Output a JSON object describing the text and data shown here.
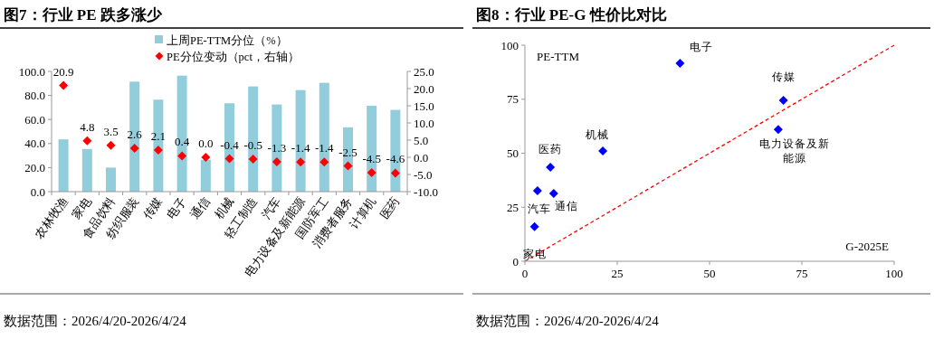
{
  "chart_data": [
    {
      "type": "bar",
      "title": "图7：行业 PE 跌多涨少",
      "categories": [
        "农林牧渔",
        "家电",
        "食品饮料",
        "纺织服装",
        "传媒",
        "电子",
        "通信",
        "机械",
        "轻工制造",
        "汽车",
        "电力设备及新能源",
        "国防军工",
        "消费者服务",
        "计算机",
        "医药"
      ],
      "series": [
        {
          "name": "上周PE-TTM分位（%）",
          "color": "#92cddc",
          "values": [
            43.5,
            35.5,
            20,
            91.5,
            76.5,
            96.5,
            26.5,
            73.5,
            87.5,
            72.5,
            84.5,
            90.5,
            53.5,
            71.5,
            68
          ]
        },
        {
          "name": "PE分位变动（pct，右轴）",
          "type": "scatter",
          "axis": "y2",
          "marker": "diamond",
          "color": "#ff0000",
          "values": [
            20.9,
            4.8,
            3.5,
            2.6,
            2.1,
            0.4,
            0.0,
            -0.4,
            -0.5,
            -1.3,
            -1.4,
            -1.4,
            -2.5,
            -4.5,
            -4.6
          ],
          "value_labels": [
            "20.9",
            "4.8",
            "3.5",
            "2.6",
            "2.1",
            "0.4",
            "0.0",
            "-0.4",
            "-0.5",
            "-1.3",
            "-1.4",
            "-1.4",
            "-2.5",
            "-4.5",
            "-4.6"
          ]
        }
      ],
      "ylim": [
        0,
        100
      ],
      "yticks": [
        {
          "value": 0,
          "label": "0.0"
        },
        {
          "value": 20,
          "label": "20.0"
        },
        {
          "value": 40,
          "label": "40.0"
        },
        {
          "value": 60,
          "label": "60.0"
        },
        {
          "value": 80,
          "label": "80.0"
        },
        {
          "value": 100,
          "label": "100.0"
        }
      ],
      "y2lim": [
        -10,
        25
      ],
      "y2ticks": [
        {
          "value": -10,
          "label": "-10.0"
        },
        {
          "value": -5,
          "label": "-5.0"
        },
        {
          "value": 0,
          "label": "0.0"
        },
        {
          "value": 5,
          "label": "5.0"
        },
        {
          "value": 10,
          "label": "10.0"
        },
        {
          "value": 15,
          "label": "15.0"
        },
        {
          "value": 20,
          "label": "20.0"
        },
        {
          "value": 25,
          "label": "25.0"
        }
      ],
      "legend": "top",
      "grid": false,
      "annotations": [
        "数据范围：2026/4/20-2026/4/24"
      ]
    },
    {
      "type": "scatter",
      "title": "图8：行业 PE-G 性价比对比",
      "xlabel": "G-2025E",
      "ylabel": "PE-TTM",
      "series": [
        {
          "color": "#0000ff",
          "marker": "diamond",
          "x": [
            42.0,
            70.0,
            68.6,
            21.1,
            6.9,
            3.4,
            7.8,
            2.6
          ],
          "values": [
            91.6,
            74.5,
            61.0,
            51.0,
            43.5,
            32.6,
            31.4,
            16.0
          ]
        },
        {
          "type": "line",
          "color": "#ff0000",
          "line_style": "dashed",
          "x": [
            0,
            100
          ],
          "values": [
            0,
            100
          ]
        }
      ],
      "xlim": [
        0,
        100
      ],
      "xticks": [
        0,
        25,
        50,
        75,
        100
      ],
      "ylim": [
        0,
        100
      ],
      "yticks": [
        0,
        25,
        50,
        75,
        100
      ],
      "grid": false,
      "annotations": [
        {
          "text": "电子",
          "x": 42.0,
          "y": 91.6
        },
        {
          "text": "传媒",
          "x": 70.0,
          "y": 74.5
        },
        {
          "text": "电力设备及新能源",
          "x": 68.6,
          "y": 61.0
        },
        {
          "text": "机械",
          "x": 21.1,
          "y": 51.0
        },
        {
          "text": "医药",
          "x": 6.9,
          "y": 43.5
        },
        {
          "text": "汽车",
          "x": 3.4,
          "y": 32.6
        },
        {
          "text": "通信",
          "x": 7.8,
          "y": 31.4
        },
        {
          "text": "家电",
          "x": 2.6,
          "y": 16.0
        },
        "数据范围：2026/4/20-2026/4/24"
      ]
    }
  ]
}
